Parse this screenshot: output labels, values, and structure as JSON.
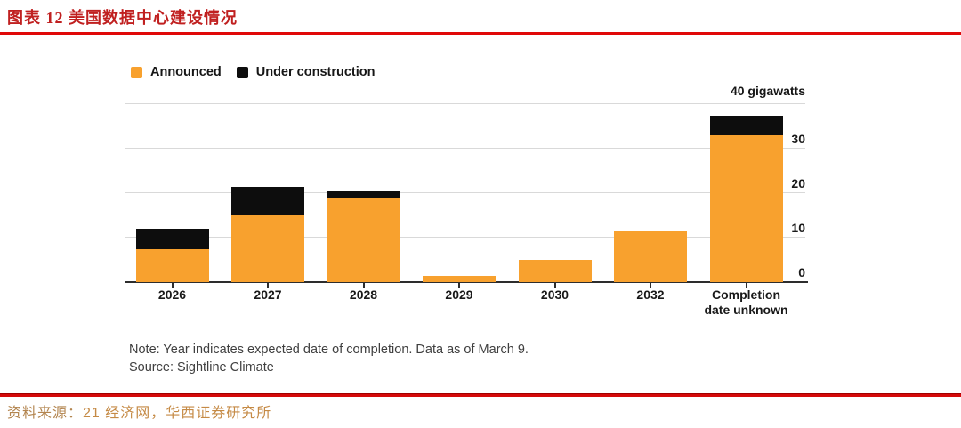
{
  "header": {
    "title": "图表 12 美国数据中心建设情况"
  },
  "footer": {
    "source_prefix": "资料来源：",
    "source_text": "21 经济网，华西证券研究所"
  },
  "chart_data": {
    "type": "bar",
    "stacked": true,
    "categories": [
      "2026",
      "2027",
      "2028",
      "2029",
      "2030",
      "2032",
      "Completion date unknown"
    ],
    "series": [
      {
        "name": "Announced",
        "color": "#F8A12E",
        "values": [
          7.5,
          15,
          19,
          1.5,
          5,
          11.5,
          33
        ]
      },
      {
        "name": "Under construction",
        "color": "#0d0d0d",
        "values": [
          4.5,
          6.5,
          1.5,
          0,
          0,
          0,
          4.5
        ]
      }
    ],
    "ylabel": "gigawatts",
    "ylim": [
      0,
      40
    ],
    "yticks": [
      0,
      10,
      20,
      30,
      40
    ],
    "ytick_labels_shown": [
      "30",
      "20",
      "10",
      "0"
    ],
    "top_axis_label": "40 gigawatts",
    "legend_position": "top-left",
    "grid": "horizontal",
    "note": "Note: Year indicates expected date of completion. Data as of March 9.",
    "source": "Source: Sightline Climate"
  }
}
